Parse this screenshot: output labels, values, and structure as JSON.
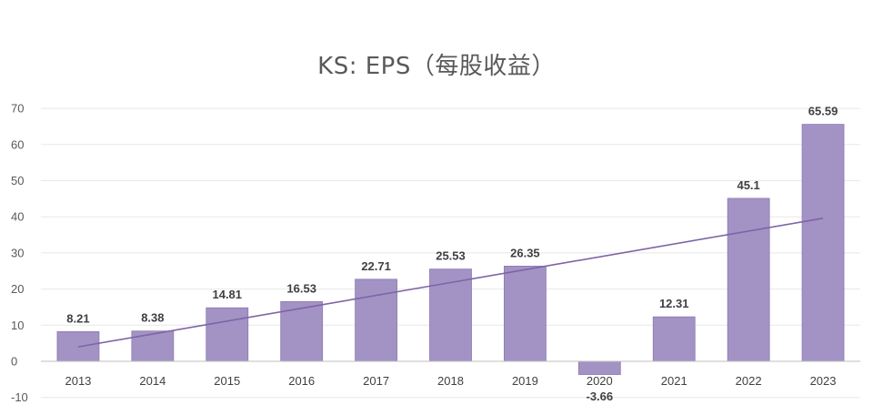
{
  "chart_data": {
    "type": "bar",
    "title": "KS: EPS（每股收益）",
    "categories": [
      "2013",
      "2014",
      "2015",
      "2016",
      "2017",
      "2018",
      "2019",
      "2020",
      "2021",
      "2022",
      "2023"
    ],
    "values": [
      8.21,
      8.38,
      14.81,
      16.53,
      22.71,
      25.53,
      26.35,
      -3.66,
      12.31,
      45.1,
      65.59
    ],
    "data_labels": [
      "8.21",
      "8.38",
      "14.81",
      "16.53",
      "22.71",
      "25.53",
      "26.35",
      "-3.66",
      "12.31",
      "45.1",
      "65.59"
    ],
    "ylim": [
      -10,
      70
    ],
    "yticks": [
      -10,
      0,
      10,
      20,
      30,
      40,
      50,
      60,
      70
    ],
    "trendline": {
      "type": "linear",
      "start": 4.0,
      "end": 39.6
    },
    "grid": true,
    "legend": "none",
    "colors": {
      "bar": "#a392c4",
      "bar_edge": "#8d7ab3",
      "trendline": "#7e64a6",
      "grid": "#e8e8e8",
      "axis": "#bfbfbf"
    }
  }
}
